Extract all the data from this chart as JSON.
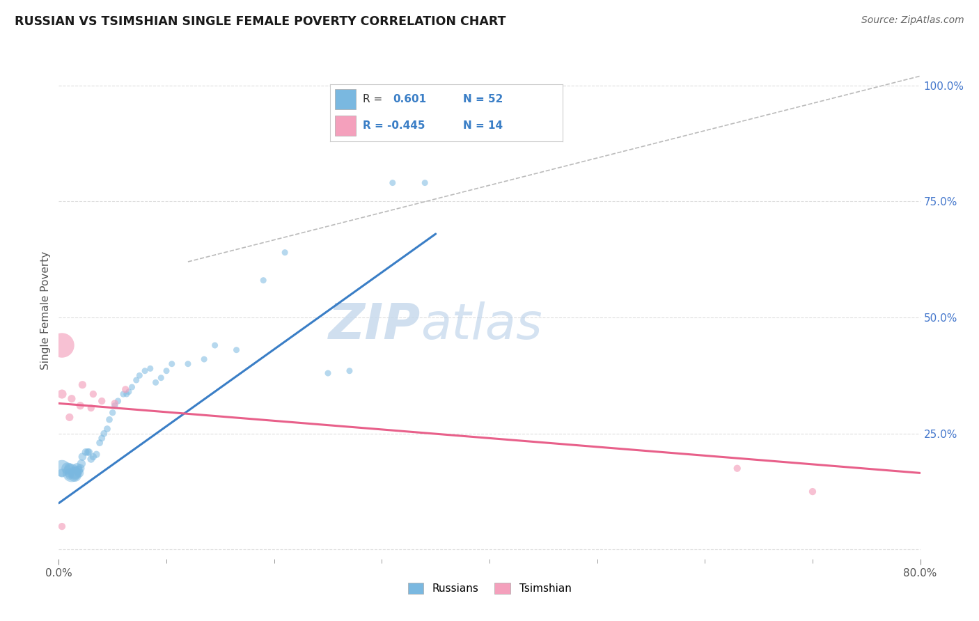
{
  "title": "RUSSIAN VS TSIMSHIAN SINGLE FEMALE POVERTY CORRELATION CHART",
  "source": "Source: ZipAtlas.com",
  "ylabel": "Single Female Poverty",
  "xmin": 0.0,
  "xmax": 0.8,
  "ymin": -0.02,
  "ymax": 1.05,
  "legend_r1": "R =",
  "legend_v1": "0.601",
  "legend_n1": "N = 52",
  "legend_r2": "R = -0.445",
  "legend_n2": "N = 14",
  "blue_color": "#7ab8e0",
  "pink_color": "#f4a0bc",
  "blue_line_color": "#3a7ec6",
  "pink_line_color": "#e8608a",
  "dashed_line_color": "#bbbbbb",
  "grid_color": "#dddddd",
  "russians_x": [
    0.003,
    0.003,
    0.008,
    0.01,
    0.01,
    0.01,
    0.012,
    0.015,
    0.015,
    0.015,
    0.017,
    0.018,
    0.019,
    0.02,
    0.021,
    0.022,
    0.025,
    0.027,
    0.028,
    0.03,
    0.032,
    0.035,
    0.038,
    0.04,
    0.042,
    0.045,
    0.047,
    0.05,
    0.052,
    0.055,
    0.06,
    0.063,
    0.065,
    0.068,
    0.072,
    0.075,
    0.08,
    0.085,
    0.09,
    0.095,
    0.1,
    0.105,
    0.12,
    0.135,
    0.145,
    0.165,
    0.19,
    0.21,
    0.25,
    0.27,
    0.31,
    0.34
  ],
  "russians_y": [
    0.175,
    0.165,
    0.175,
    0.175,
    0.165,
    0.16,
    0.165,
    0.165,
    0.16,
    0.165,
    0.175,
    0.17,
    0.165,
    0.175,
    0.185,
    0.2,
    0.21,
    0.21,
    0.21,
    0.195,
    0.2,
    0.205,
    0.23,
    0.24,
    0.25,
    0.26,
    0.28,
    0.295,
    0.31,
    0.32,
    0.335,
    0.335,
    0.34,
    0.35,
    0.365,
    0.375,
    0.385,
    0.39,
    0.36,
    0.37,
    0.385,
    0.4,
    0.4,
    0.41,
    0.44,
    0.43,
    0.58,
    0.64,
    0.38,
    0.385,
    0.79,
    0.79
  ],
  "russians_size": [
    300,
    80,
    150,
    120,
    100,
    80,
    350,
    200,
    180,
    150,
    120,
    100,
    90,
    80,
    80,
    70,
    60,
    60,
    60,
    60,
    55,
    55,
    50,
    50,
    50,
    50,
    48,
    45,
    45,
    45,
    45,
    42,
    42,
    42,
    42,
    42,
    42,
    42,
    42,
    42,
    42,
    42,
    42,
    42,
    42,
    42,
    42,
    42,
    42,
    42,
    42,
    42
  ],
  "tsimshian_x": [
    0.003,
    0.003,
    0.003,
    0.01,
    0.012,
    0.02,
    0.022,
    0.03,
    0.032,
    0.04,
    0.052,
    0.062,
    0.63,
    0.7
  ],
  "tsimshian_y": [
    0.44,
    0.335,
    0.05,
    0.285,
    0.325,
    0.31,
    0.355,
    0.305,
    0.335,
    0.32,
    0.315,
    0.345,
    0.175,
    0.125
  ],
  "tsimshian_size": [
    650,
    90,
    55,
    65,
    65,
    65,
    65,
    55,
    55,
    55,
    55,
    55,
    55,
    55
  ],
  "blue_trendline_x": [
    0.0,
    0.35
  ],
  "blue_trendline_y": [
    0.1,
    0.68
  ],
  "pink_trendline_x": [
    0.0,
    0.8
  ],
  "pink_trendline_y": [
    0.315,
    0.165
  ],
  "dashed_line_x": [
    0.12,
    0.8
  ],
  "dashed_line_y": [
    0.62,
    1.02
  ],
  "ytick_positions": [
    0.0,
    0.25,
    0.5,
    0.75,
    1.0
  ],
  "ytick_labels": [
    "",
    "25.0%",
    "50.0%",
    "75.0%",
    "100.0%"
  ],
  "xtick_minor_count": 9
}
